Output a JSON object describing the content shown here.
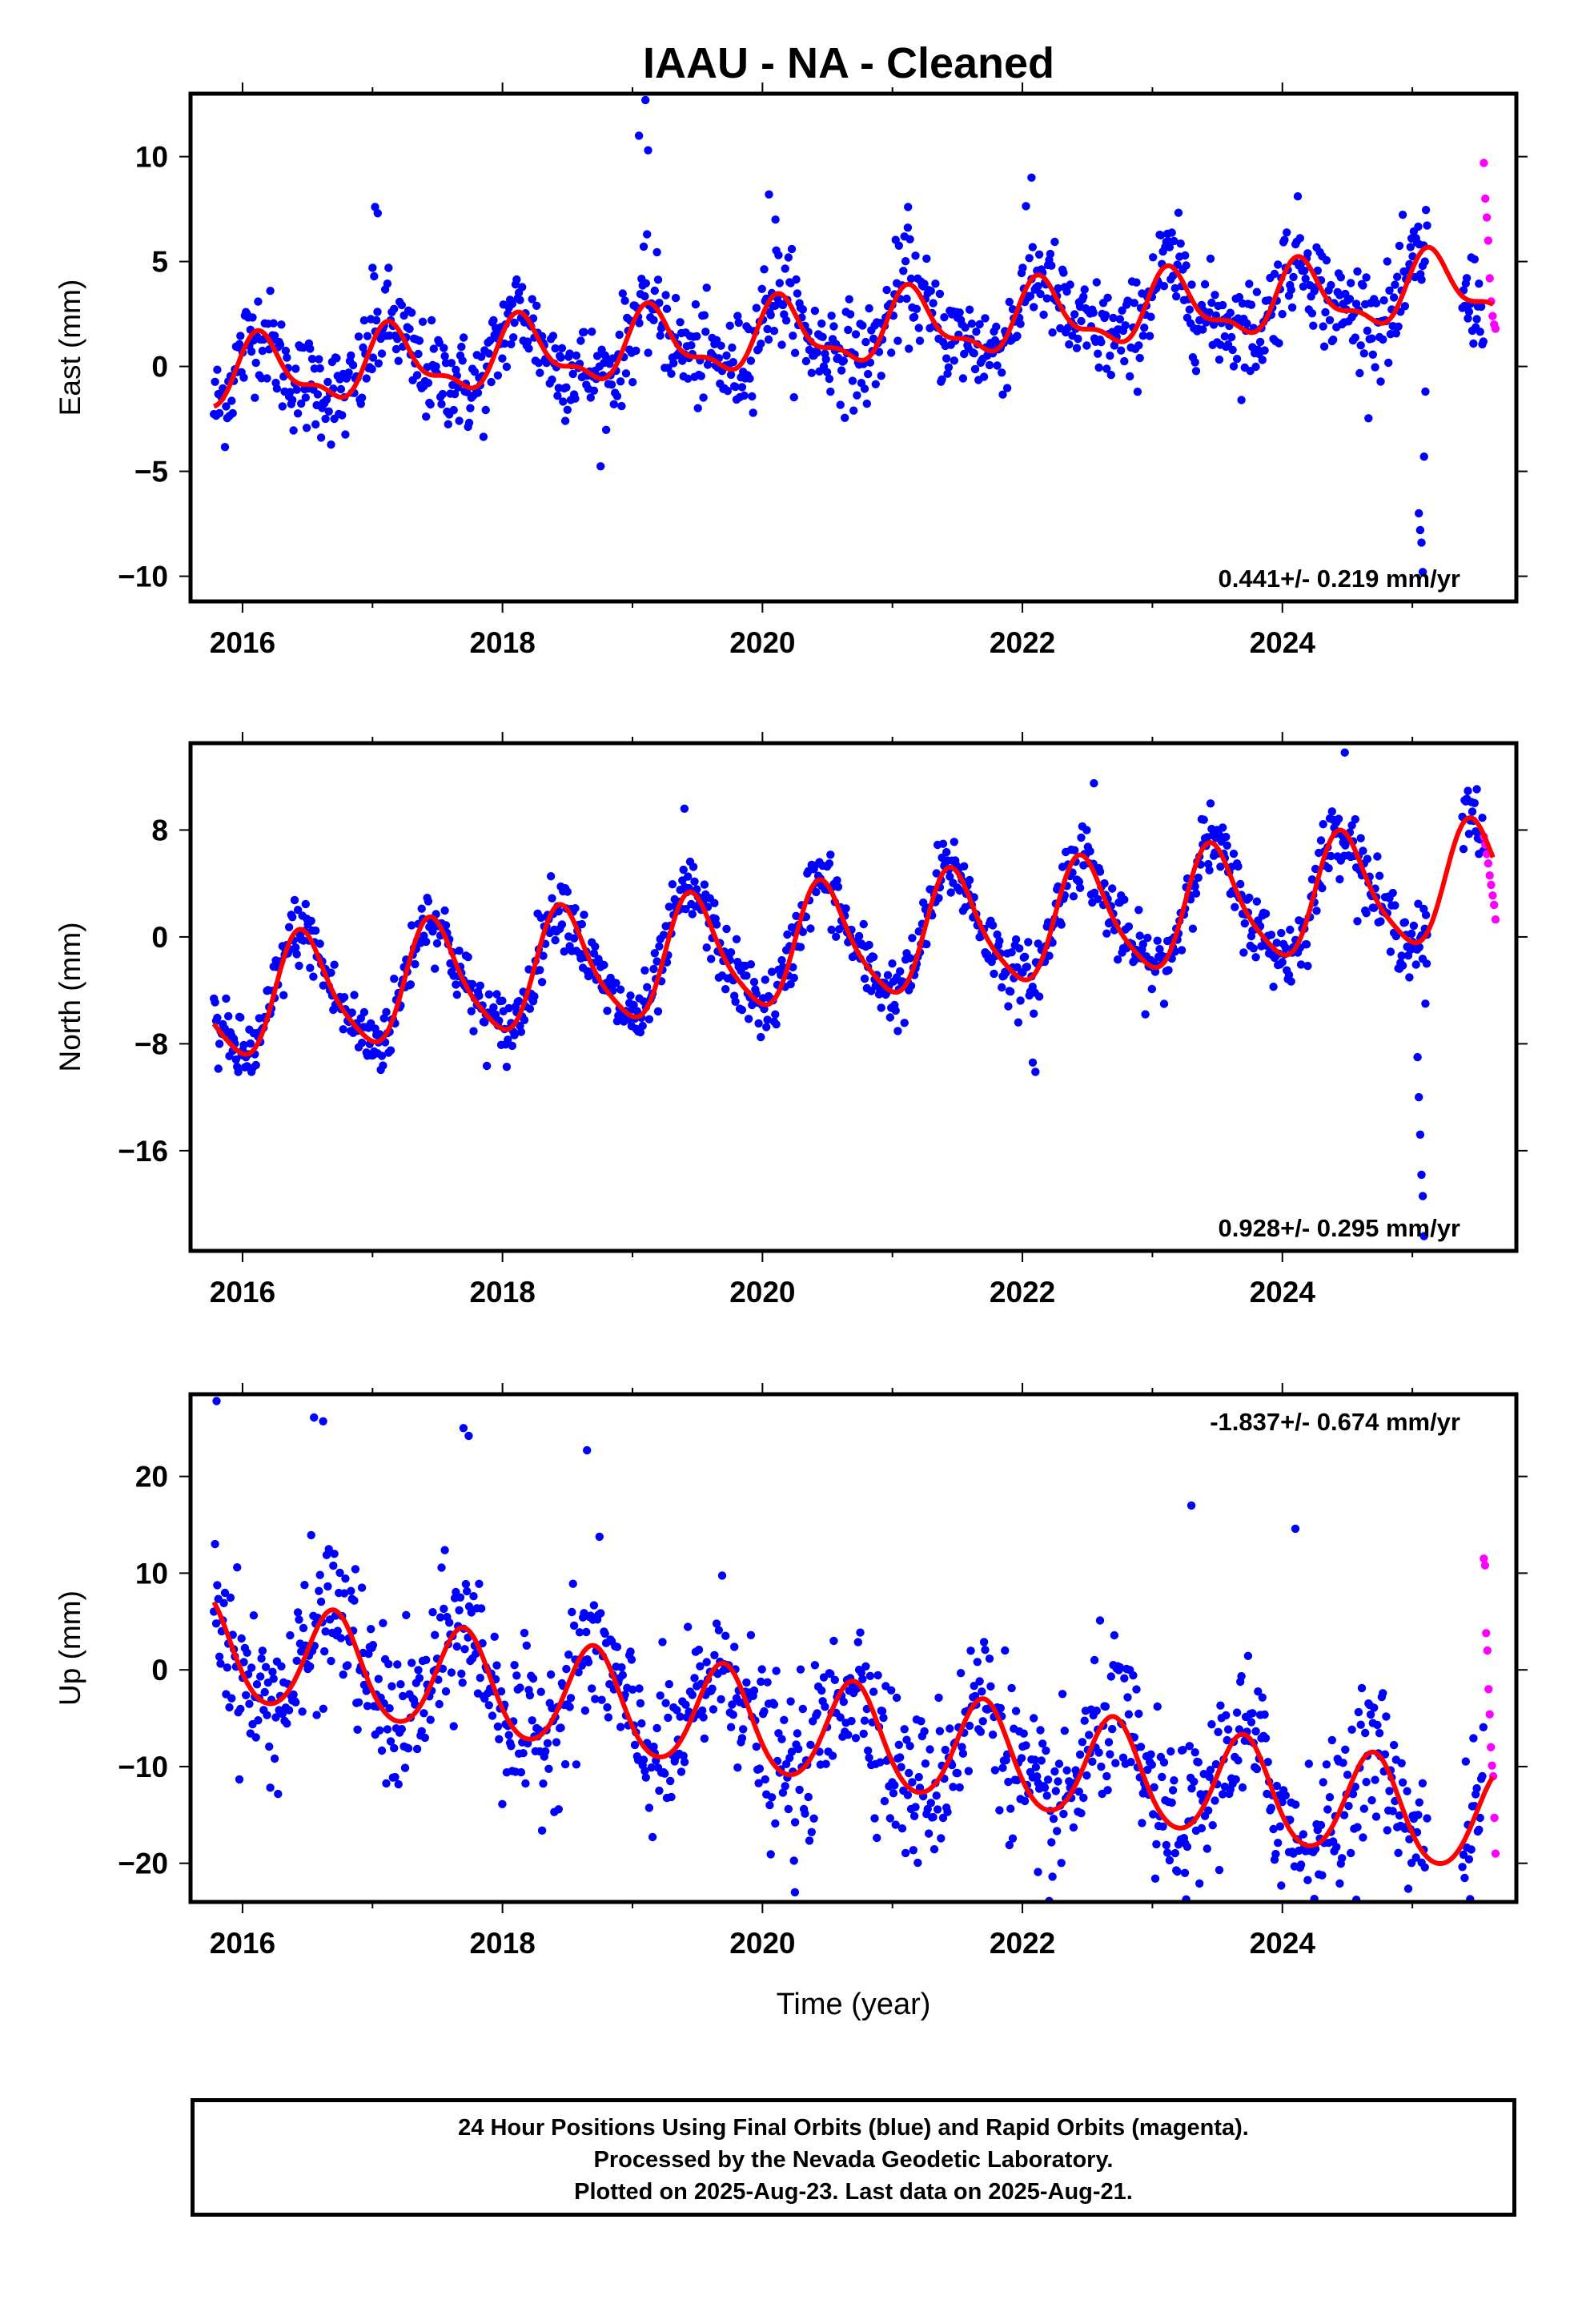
{
  "title": "IAAU  - NA - Cleaned",
  "colors": {
    "final_orbits": "#0000ff",
    "rapid_orbits": "#ff00ff",
    "model_fit": "#ff0000"
  },
  "x_axis": {
    "label": "Time (year)",
    "range": [
      2015.6,
      2025.8
    ],
    "ticks": [
      "2016",
      "2018",
      "2020",
      "2022",
      "2024"
    ]
  },
  "chart_data": [
    {
      "type": "scatter",
      "component": "East",
      "ylabel": "East (mm)",
      "ylim": [
        -11.2,
        13.0
      ],
      "yticks": [
        "10",
        "5",
        "0",
        "−5",
        "−10"
      ],
      "xticks": [
        "2016",
        "2018",
        "2020",
        "2022",
        "2024"
      ],
      "rate_annotation": "0.441+/- 0.219 mm/yr",
      "annotation_position": "bottom-right",
      "model": {
        "start_year": 2015.78,
        "end_year": 2025.62,
        "value_at_start": -1.9,
        "trend_mm_per_yr": 0.441,
        "annual_amplitude": 1.5,
        "annual_peak_year_fraction": 0.15,
        "semiannual_amplitude": 0.6,
        "semiannual_peak_year_fraction": 0.1
      },
      "scatter_spread": 1.2,
      "series": [
        {
          "name": "Final Orbits (blue)",
          "x_range": [
            2015.78,
            2025.55
          ],
          "color": "#0000ff"
        },
        {
          "name": "Rapid Orbits (magenta)",
          "x_range": [
            2025.55,
            2025.64
          ],
          "y_values": [
            9.7,
            8.0,
            7.1,
            6.0,
            4.2,
            3.1,
            2.4,
            2.0,
            1.8
          ],
          "color": "#ff00ff"
        }
      ],
      "outliers": [
        {
          "x": 2025.05,
          "y": -7.0
        },
        {
          "x": 2025.06,
          "y": -7.8
        },
        {
          "x": 2025.07,
          "y": -8.4
        },
        {
          "x": 2025.08,
          "y": -9.8
        },
        {
          "x": 2025.09,
          "y": -4.3
        },
        {
          "x": 2025.1,
          "y": -1.2
        },
        {
          "x": 2019.1,
          "y": 12.7
        },
        {
          "x": 2019.05,
          "y": 11.0
        },
        {
          "x": 2019.12,
          "y": 10.3
        },
        {
          "x": 2017.02,
          "y": 7.6
        },
        {
          "x": 2017.04,
          "y": 7.3
        },
        {
          "x": 2017.0,
          "y": 4.7
        },
        {
          "x": 2020.05,
          "y": 8.2
        },
        {
          "x": 2020.1,
          "y": 7.0
        },
        {
          "x": 2021.12,
          "y": 7.6
        },
        {
          "x": 2022.07,
          "y": 9.0
        }
      ]
    },
    {
      "type": "scatter",
      "component": "North",
      "ylabel": "North (mm)",
      "ylim": [
        -23.5,
        14.5
      ],
      "yticks": [
        "8",
        "0",
        "−8",
        "−16"
      ],
      "xticks": [
        "2016",
        "2018",
        "2020",
        "2022",
        "2024"
      ],
      "rate_annotation": "0.928+/- 0.295 mm/yr",
      "annotation_position": "bottom-right",
      "model": {
        "start_year": 2015.78,
        "end_year": 2025.62,
        "value_at_start": -6.5,
        "trend_mm_per_yr": 0.928,
        "annual_amplitude": 4.3,
        "annual_peak_year_fraction": 0.47,
        "semiannual_amplitude": 0.8,
        "semiannual_peak_year_fraction": 0.4
      },
      "scatter_spread": 1.3,
      "series": [
        {
          "name": "Final Orbits (blue)",
          "x_range": [
            2015.78,
            2025.55
          ],
          "color": "#0000ff"
        },
        {
          "name": "Rapid Orbits (magenta)",
          "x_range": [
            2025.55,
            2025.64
          ],
          "y_values": [
            7.5,
            6.9,
            6.2,
            5.5,
            4.6,
            3.9,
            3.1,
            2.4,
            1.3
          ],
          "color": "#ff00ff"
        }
      ],
      "outliers": [
        {
          "x": 2025.04,
          "y": -9.0
        },
        {
          "x": 2025.05,
          "y": -12.0
        },
        {
          "x": 2025.06,
          "y": -14.8
        },
        {
          "x": 2025.07,
          "y": -17.8
        },
        {
          "x": 2025.08,
          "y": -19.4
        },
        {
          "x": 2025.09,
          "y": -22.4
        },
        {
          "x": 2025.1,
          "y": -5.0
        },
        {
          "x": 2025.11,
          "y": -2.0
        },
        {
          "x": 2022.08,
          "y": -9.4
        },
        {
          "x": 2022.1,
          "y": -10.1
        },
        {
          "x": 2024.48,
          "y": 13.8
        },
        {
          "x": 2019.4,
          "y": 9.6
        },
        {
          "x": 2022.55,
          "y": 11.5
        }
      ]
    },
    {
      "type": "scatter",
      "component": "Up",
      "ylabel": "Up (mm)",
      "ylim": [
        -24.0,
        28.5
      ],
      "yticks": [
        "20",
        "10",
        "0",
        "−10",
        "−20"
      ],
      "xticks": [
        "2016",
        "2018",
        "2020",
        "2022",
        "2024"
      ],
      "rate_annotation": "-1.837+/- 0.674 mm/yr",
      "annotation_position": "top-right",
      "model": {
        "start_year": 2015.78,
        "end_year": 2025.62,
        "value_at_start": 7.0,
        "trend_mm_per_yr": -1.837,
        "annual_amplitude": 5.3,
        "annual_peak_year_fraction": 0.7,
        "semiannual_amplitude": 0.5,
        "semiannual_peak_year_fraction": 0.2
      },
      "scatter_spread": 4.0,
      "series": [
        {
          "name": "Final Orbits (blue)",
          "x_range": [
            2015.78,
            2025.55
          ],
          "color": "#0000ff"
        },
        {
          "name": "Rapid Orbits (magenta)",
          "x_range": [
            2025.55,
            2025.64
          ],
          "y_values": [
            11.5,
            10.8,
            3.8,
            2.0,
            -2.0,
            -4.6,
            -8.0,
            -9.9,
            -11.0,
            -15.3,
            -19.0
          ],
          "color": "#ff00ff"
        }
      ],
      "outliers": [
        {
          "x": 2015.8,
          "y": 27.8
        },
        {
          "x": 2016.55,
          "y": 26.1
        },
        {
          "x": 2016.62,
          "y": 25.7
        },
        {
          "x": 2017.7,
          "y": 25.0
        },
        {
          "x": 2017.74,
          "y": 24.2
        },
        {
          "x": 2018.65,
          "y": 22.7
        },
        {
          "x": 2020.25,
          "y": -23.0
        },
        {
          "x": 2023.25,
          "y": -21.0
        },
        {
          "x": 2022.12,
          "y": -20.9
        },
        {
          "x": 2023.3,
          "y": 17.0
        },
        {
          "x": 2024.1,
          "y": 14.6
        }
      ]
    }
  ],
  "footer": {
    "line1": "24 Hour Positions Using Final Orbits (blue) and Rapid Orbits (magenta).",
    "line2": "Processed by the Nevada Geodetic Laboratory.",
    "line3": "Plotted on 2025-Aug-23. Last data on 2025-Aug-21."
  }
}
